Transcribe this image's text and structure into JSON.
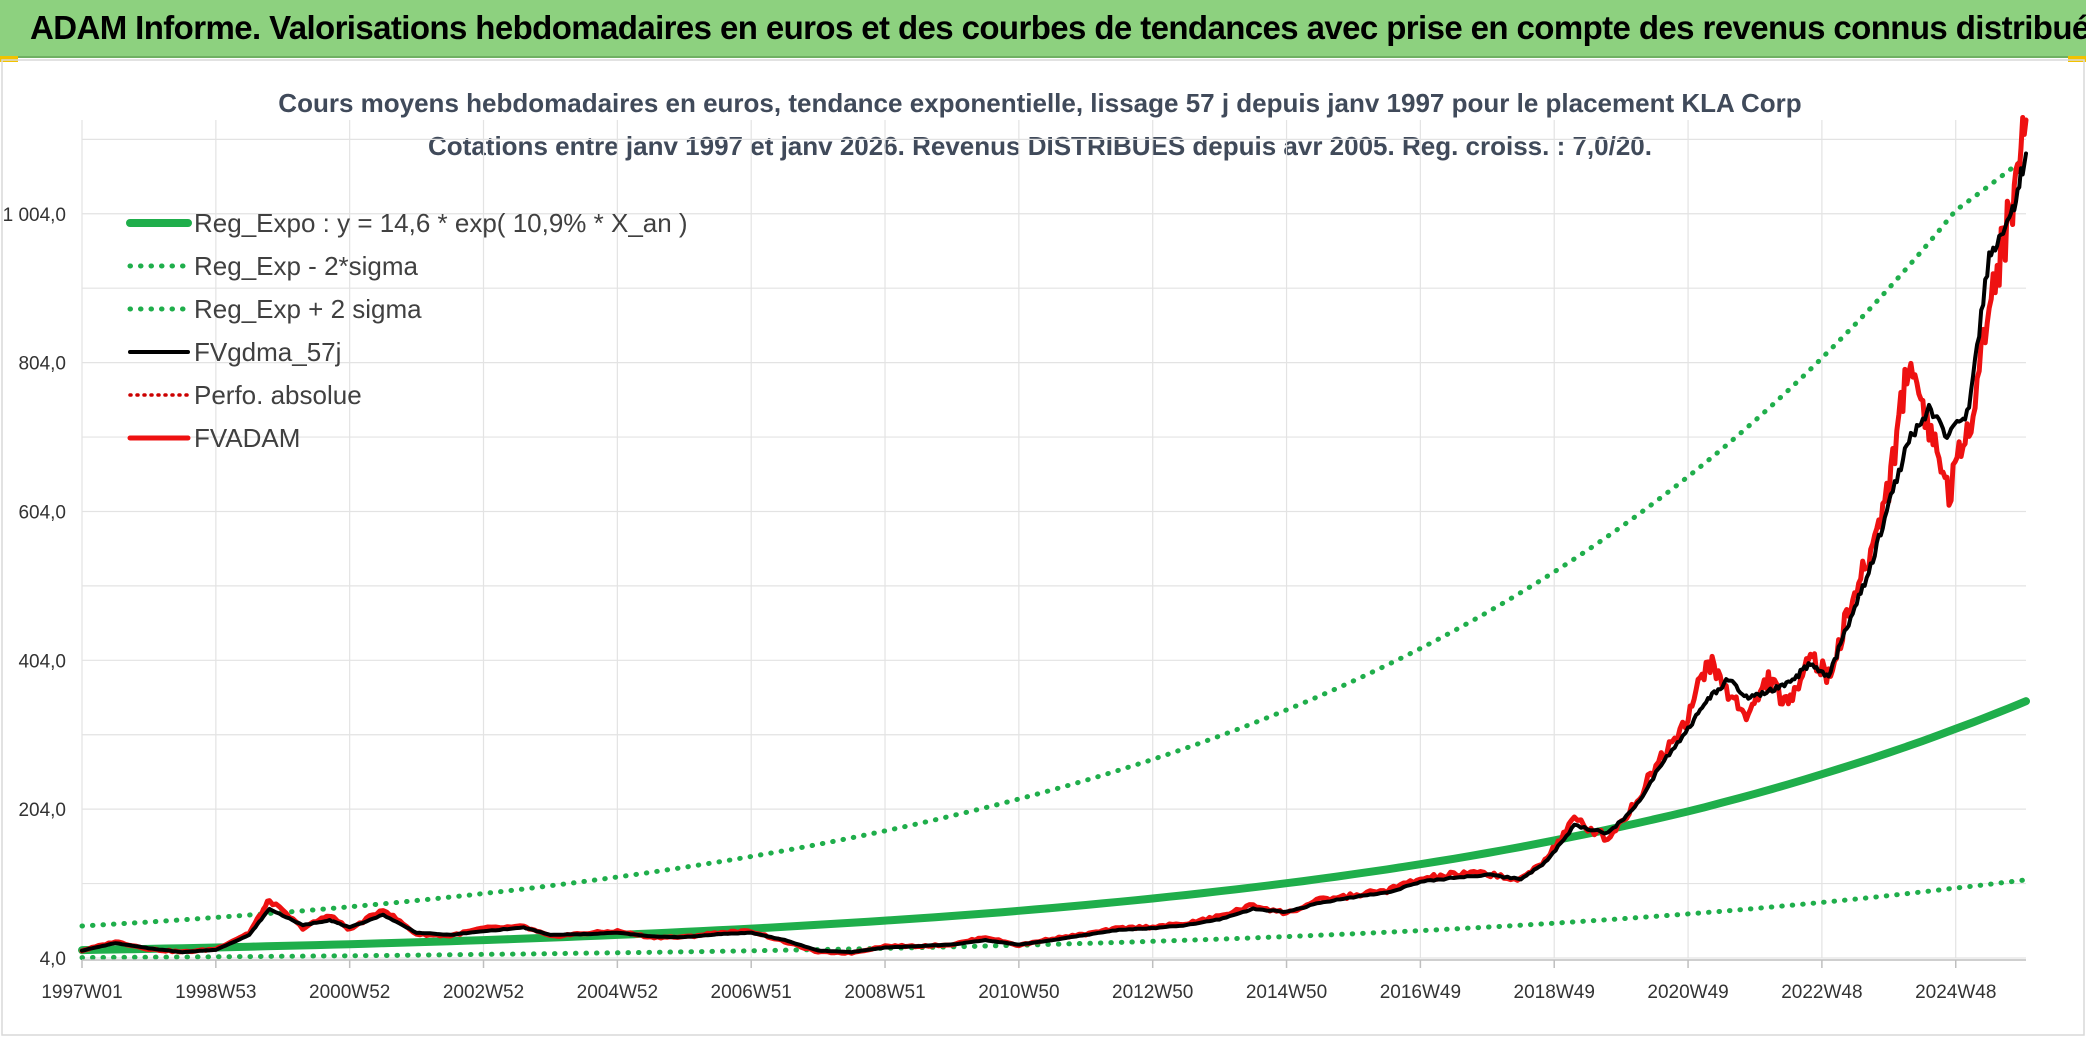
{
  "banner": {
    "title": "ADAM Informe. Valorisations hebdomadaires en euros et des courbes de tendances avec prise en compte des revenus connus distribués"
  },
  "colors": {
    "banner_bg": "#8dd17f",
    "reg_expo": "#1fae4b",
    "sigma": "#1fae4b",
    "fvgdma": "#000000",
    "perfo": "#cc0000",
    "fvadam": "#ee1111",
    "grid": "#e3e3e3"
  },
  "chart_data": {
    "type": "line",
    "title": "Cours moyens hebdomadaires en euros, tendance exponentielle, lissage 57 j depuis janv 1997 pour le placement KLA Corp",
    "subtitle": "Cotations entre janv 1997 et janv 2026. Revenus DISTRIBUES depuis avr 2005. Reg. croiss. : 7,0/20.",
    "x_tick_labels": [
      "1997W01",
      "1998W53",
      "2000W52",
      "2002W52",
      "2004W52",
      "2006W51",
      "2008W51",
      "2010W50",
      "2012W50",
      "2014W50",
      "2016W49",
      "2018W49",
      "2020W49",
      "2022W48",
      "2024W48"
    ],
    "x_range": [
      1997.0,
      2026.05
    ],
    "y_tick_labels": [
      "4,0",
      "204,0",
      "404,0",
      "604,0",
      "804,0",
      "1 004,0"
    ],
    "y_ticks": [
      4,
      204,
      404,
      604,
      804,
      1004
    ],
    "ylim": [
      4,
      1130
    ],
    "legend_position": "top-left",
    "grid": true,
    "series": [
      {
        "name": "Reg_Expo : y = 14,6 * exp( 10,9% *  X_an )",
        "style": "solid-thick",
        "x": [
          1997.0,
          1999.0,
          2001.0,
          2003.0,
          2005.0,
          2007.0,
          2009.0,
          2011.0,
          2013.0,
          2015.0,
          2017.0,
          2019.0,
          2021.0,
          2023.0,
          2025.0,
          2026.05
        ],
        "y": [
          14.6,
          18.1,
          22.6,
          28.1,
          35.0,
          43.5,
          54.2,
          67.4,
          84.0,
          104.5,
          130.0,
          162.0,
          201.0,
          251.0,
          312.0,
          349.0
        ]
      },
      {
        "name": "Reg_Exp - 2*sigma",
        "style": "dotted",
        "x": [
          1997.0,
          1999.0,
          2001.0,
          2003.0,
          2005.0,
          2007.0,
          2009.0,
          2011.0,
          2013.0,
          2015.0,
          2017.0,
          2019.0,
          2021.0,
          2023.0,
          2025.0,
          2026.05
        ],
        "y": [
          4.5,
          5.6,
          7.0,
          8.8,
          11.0,
          13.7,
          17.0,
          21.2,
          26.4,
          32.8,
          40.8,
          50.8,
          63.2,
          78.7,
          98.0,
          109.0
        ]
      },
      {
        "name": "Reg_Exp + 2 sigma",
        "style": "dotted",
        "x": [
          1997.0,
          1999.0,
          2001.0,
          2003.0,
          2005.0,
          2007.0,
          2009.0,
          2011.0,
          2013.0,
          2015.0,
          2017.0,
          2019.0,
          2021.0,
          2023.0,
          2025.0,
          2026.05
        ],
        "y": [
          47.0,
          58.5,
          72.8,
          90.6,
          112.8,
          140.4,
          174.8,
          217.6,
          270.9,
          337.3,
          419.9,
          522.8,
          650.8,
          810.1,
          1008.5,
          1080.0
        ]
      },
      {
        "name": "FVgdma_57j",
        "style": "solid",
        "x": [
          1997.0,
          1997.5,
          1998.0,
          1998.5,
          1999.0,
          1999.5,
          1999.8,
          2000.3,
          2000.7,
          2001.0,
          2001.5,
          2002.0,
          2002.5,
          2003.0,
          2003.6,
          2004.0,
          2004.5,
          2005.0,
          2005.5,
          2006.0,
          2006.5,
          2007.0,
          2007.5,
          2008.0,
          2008.5,
          2009.0,
          2009.5,
          2010.0,
          2010.5,
          2011.0,
          2011.5,
          2012.0,
          2012.5,
          2013.0,
          2013.5,
          2014.0,
          2014.5,
          2015.0,
          2015.5,
          2016.0,
          2016.5,
          2017.0,
          2017.5,
          2018.0,
          2018.5,
          2018.9,
          2019.3,
          2019.8,
          2020.2,
          2020.6,
          2021.0,
          2021.3,
          2021.6,
          2021.9,
          2022.2,
          2022.5,
          2022.8,
          2023.1,
          2023.4,
          2023.7,
          2024.0,
          2024.3,
          2024.6,
          2024.9,
          2025.2,
          2025.5,
          2025.8,
          2026.05
        ],
        "y": [
          14,
          24,
          17,
          12,
          15,
          35,
          70,
          48,
          55,
          45,
          62,
          38,
          35,
          40,
          45,
          35,
          36,
          38,
          33,
          32,
          36,
          38,
          28,
          14,
          12,
          18,
          20,
          22,
          28,
          22,
          28,
          35,
          42,
          44,
          48,
          56,
          70,
          66,
          78,
          86,
          92,
          106,
          112,
          116,
          110,
          135,
          182,
          172,
          205,
          265,
          312,
          352,
          378,
          352,
          362,
          372,
          398,
          382,
          455,
          520,
          615,
          700,
          740,
          705,
          740,
          950,
          990,
          1085
        ]
      },
      {
        "name": "Perfo. absolue",
        "style": "dotted",
        "x": [],
        "y": []
      },
      {
        "name": "FVADAM",
        "style": "solid-thick",
        "x": [
          1997.0,
          1997.5,
          1998.0,
          1998.5,
          1999.0,
          1999.5,
          1999.8,
          2000.3,
          2000.7,
          2001.0,
          2001.5,
          2002.0,
          2002.5,
          2003.0,
          2003.6,
          2004.0,
          2004.5,
          2005.0,
          2005.5,
          2006.0,
          2006.5,
          2007.0,
          2007.5,
          2008.0,
          2008.5,
          2009.0,
          2009.5,
          2010.0,
          2010.5,
          2011.0,
          2011.5,
          2012.0,
          2012.5,
          2013.0,
          2013.5,
          2014.0,
          2014.5,
          2015.0,
          2015.5,
          2016.0,
          2016.5,
          2017.0,
          2017.5,
          2018.0,
          2018.5,
          2018.9,
          2019.3,
          2019.8,
          2020.2,
          2020.6,
          2021.0,
          2021.3,
          2021.6,
          2021.9,
          2022.2,
          2022.5,
          2022.8,
          2023.1,
          2023.4,
          2023.7,
          2024.0,
          2024.3,
          2024.6,
          2024.9,
          2025.2,
          2025.5,
          2025.8,
          2026.05
        ],
        "y": [
          14,
          26,
          16,
          12,
          16,
          38,
          82,
          44,
          62,
          42,
          70,
          36,
          34,
          44,
          46,
          33,
          37,
          40,
          32,
          32,
          38,
          40,
          26,
          12,
          11,
          20,
          20,
          22,
          32,
          21,
          30,
          36,
          44,
          46,
          50,
          60,
          75,
          64,
          82,
          88,
          95,
          110,
          116,
          118,
          108,
          140,
          190,
          165,
          210,
          275,
          330,
          405,
          360,
          330,
          380,
          340,
          415,
          380,
          470,
          540,
          640,
          810,
          720,
          630,
          720,
          880,
          1000,
          1130
        ]
      }
    ]
  }
}
